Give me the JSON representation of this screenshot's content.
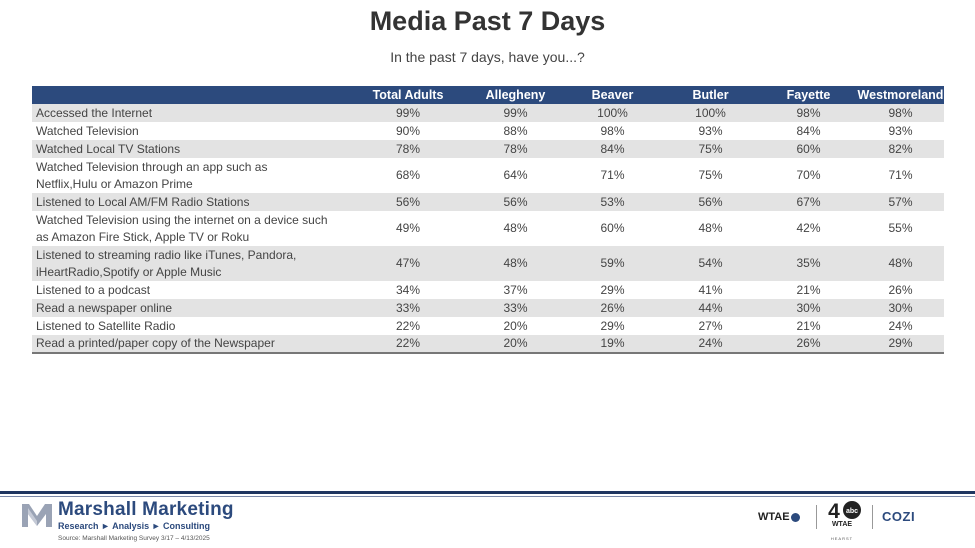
{
  "title": "Media Past 7 Days",
  "subtitle": "In the past 7 days, have you...?",
  "table": {
    "columns": [
      "",
      "Total Adults",
      "Allegheny",
      "Beaver",
      "Butler",
      "Fayette",
      "Westmoreland"
    ],
    "rows": [
      {
        "label": "Accessed the Internet",
        "values": [
          "99%",
          "99%",
          "100%",
          "100%",
          "98%",
          "98%"
        ]
      },
      {
        "label": "Watched Television",
        "values": [
          "90%",
          "88%",
          "98%",
          "93%",
          "84%",
          "93%"
        ]
      },
      {
        "label": "Watched Local TV Stations",
        "values": [
          "78%",
          "78%",
          "84%",
          "75%",
          "60%",
          "82%"
        ]
      },
      {
        "label": "Watched Television through an app such as Netflix,Hulu or Amazon Prime",
        "label_lines": [
          "Watched Television through an app such as",
          "Netflix,Hulu or Amazon Prime"
        ],
        "values": [
          "68%",
          "64%",
          "71%",
          "75%",
          "70%",
          "71%"
        ]
      },
      {
        "label": "Listened to Local AM/FM Radio Stations",
        "values": [
          "56%",
          "56%",
          "53%",
          "56%",
          "67%",
          "57%"
        ]
      },
      {
        "label": "Watched Television using the internet on a device such as Amazon Fire Stick, Apple TV or Roku",
        "label_lines": [
          "Watched Television using the internet on a device such",
          "as Amazon Fire Stick, Apple TV or Roku"
        ],
        "values": [
          "49%",
          "48%",
          "60%",
          "48%",
          "42%",
          "55%"
        ]
      },
      {
        "label": "Listened to streaming radio like iTunes, Pandora, iHeartRadio,Spotify or Apple Music",
        "label_lines": [
          "Listened to streaming radio like iTunes, Pandora,",
          "iHeartRadio,Spotify or Apple Music"
        ],
        "values": [
          "47%",
          "48%",
          "59%",
          "54%",
          "35%",
          "48%"
        ]
      },
      {
        "label": "Listened to a podcast",
        "values": [
          "34%",
          "37%",
          "29%",
          "41%",
          "21%",
          "26%"
        ]
      },
      {
        "label": "Read a newspaper online",
        "values": [
          "33%",
          "33%",
          "26%",
          "44%",
          "30%",
          "30%"
        ]
      },
      {
        "label": "Listened to Satellite Radio",
        "values": [
          "22%",
          "20%",
          "29%",
          "27%",
          "21%",
          "24%"
        ]
      },
      {
        "label": "Read a printed/paper copy of the Newspaper",
        "values": [
          "22%",
          "20%",
          "19%",
          "24%",
          "26%",
          "29%"
        ]
      }
    ]
  },
  "footer": {
    "company": "Marshall Marketing",
    "tagline": "Research ► Analysis ► Consulting",
    "source": "Source: Marshall Marketing Survey 3/17 – 4/13/2025",
    "brands": {
      "wtae": "WTAE",
      "channel": "4",
      "channel_sub": "WTAE",
      "hearst": "HEARST",
      "cozi": "COZI"
    }
  },
  "colors": {
    "header_bg": "#2c4a7d",
    "row_shade": "#e3e3e3",
    "brand": "#2c4a7d"
  },
  "icons": {
    "logo": "marshall-m-icon",
    "abc": "abc-circle-icon"
  }
}
